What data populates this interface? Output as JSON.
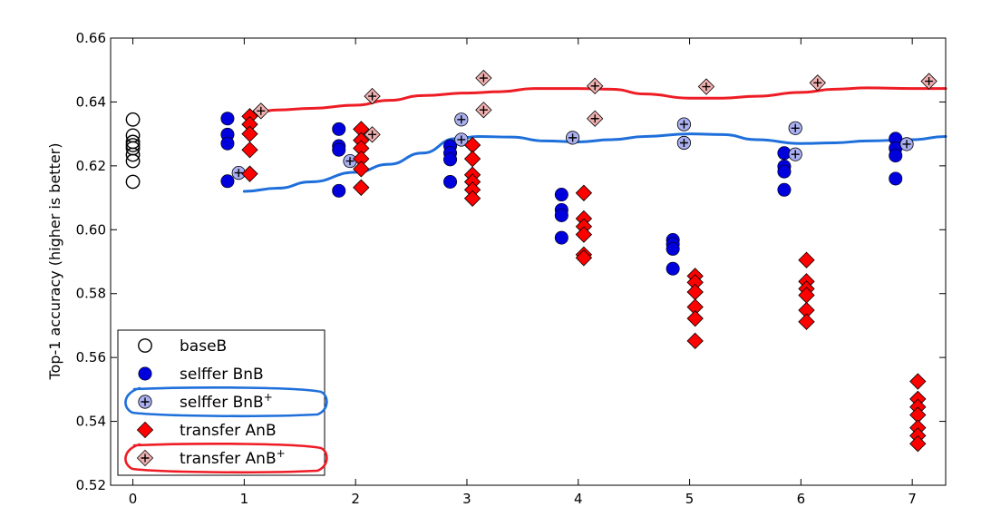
{
  "chart_data": {
    "type": "scatter",
    "ylabel": "Top-1 accuracy (higher is better)",
    "xlim": [
      -0.2,
      7.3
    ],
    "ylim": [
      0.52,
      0.66
    ],
    "x_ticks": [
      "0",
      "1",
      "2",
      "3",
      "4",
      "5",
      "6",
      "7"
    ],
    "y_ticks": [
      "0.52",
      "0.54",
      "0.56",
      "0.58",
      "0.60",
      "0.62",
      "0.64",
      "0.66"
    ],
    "grid": false,
    "legend_position": "lower-left",
    "series": [
      {
        "name": "baseB",
        "marker": "open-circle",
        "color": "#000000",
        "points": [
          [
            0,
            0.6345
          ],
          [
            0,
            0.6295
          ],
          [
            0,
            0.6275
          ],
          [
            0,
            0.6265
          ],
          [
            0,
            0.6255
          ],
          [
            0,
            0.6235
          ],
          [
            0,
            0.6215
          ],
          [
            0,
            0.615
          ]
        ]
      },
      {
        "name": "selffer BnB",
        "marker": "circle",
        "color": "#0000dd",
        "points": [
          [
            0.85,
            0.6348
          ],
          [
            0.85,
            0.6298
          ],
          [
            0.85,
            0.627
          ],
          [
            0.85,
            0.6152
          ],
          [
            1.85,
            0.6315
          ],
          [
            1.85,
            0.6262
          ],
          [
            1.85,
            0.625
          ],
          [
            1.85,
            0.6122
          ],
          [
            2.85,
            0.6262
          ],
          [
            2.85,
            0.624
          ],
          [
            2.85,
            0.622
          ],
          [
            2.85,
            0.615
          ],
          [
            3.85,
            0.611
          ],
          [
            3.85,
            0.6062
          ],
          [
            3.85,
            0.6045
          ],
          [
            3.85,
            0.5975
          ],
          [
            4.85,
            0.5968
          ],
          [
            4.85,
            0.5955
          ],
          [
            4.85,
            0.594
          ],
          [
            4.85,
            0.5878
          ],
          [
            5.85,
            0.624
          ],
          [
            5.85,
            0.6198
          ],
          [
            5.85,
            0.6182
          ],
          [
            5.85,
            0.6125
          ],
          [
            6.85,
            0.6285
          ],
          [
            6.85,
            0.6255
          ],
          [
            6.85,
            0.6232
          ],
          [
            6.85,
            0.616
          ]
        ]
      },
      {
        "name": "selffer BnB",
        "name_sup": "+",
        "marker": "plus-circle",
        "color": "#aab0f0",
        "points": [
          [
            0.95,
            0.6178
          ],
          [
            1.95,
            0.6215
          ],
          [
            2.95,
            0.6345
          ],
          [
            2.95,
            0.6282
          ],
          [
            3.95,
            0.6288
          ],
          [
            4.95,
            0.633
          ],
          [
            4.95,
            0.6272
          ],
          [
            5.95,
            0.6318
          ],
          [
            5.95,
            0.6236
          ],
          [
            6.95,
            0.6268
          ]
        ]
      },
      {
        "name": "transfer AnB",
        "marker": "diamond",
        "color": "#ff0000",
        "points": [
          [
            1.05,
            0.6355
          ],
          [
            1.05,
            0.633
          ],
          [
            1.05,
            0.63
          ],
          [
            1.05,
            0.625
          ],
          [
            1.05,
            0.6175
          ],
          [
            2.05,
            0.6315
          ],
          [
            2.05,
            0.628
          ],
          [
            2.05,
            0.6255
          ],
          [
            2.05,
            0.6222
          ],
          [
            2.05,
            0.619
          ],
          [
            2.05,
            0.6132
          ],
          [
            3.05,
            0.6265
          ],
          [
            3.05,
            0.6222
          ],
          [
            3.05,
            0.6172
          ],
          [
            3.05,
            0.615
          ],
          [
            3.05,
            0.6125
          ],
          [
            3.05,
            0.6098
          ],
          [
            4.05,
            0.6115
          ],
          [
            4.05,
            0.6035
          ],
          [
            4.05,
            0.601
          ],
          [
            4.05,
            0.5985
          ],
          [
            4.05,
            0.5922
          ],
          [
            4.05,
            0.5912
          ],
          [
            5.05,
            0.5855
          ],
          [
            5.05,
            0.5835
          ],
          [
            5.05,
            0.5805
          ],
          [
            5.05,
            0.5758
          ],
          [
            5.05,
            0.5722
          ],
          [
            5.05,
            0.5652
          ],
          [
            6.05,
            0.5905
          ],
          [
            6.05,
            0.5838
          ],
          [
            6.05,
            0.5815
          ],
          [
            6.05,
            0.5795
          ],
          [
            6.05,
            0.5748
          ],
          [
            6.05,
            0.5712
          ],
          [
            7.05,
            0.5525
          ],
          [
            7.05,
            0.547
          ],
          [
            7.05,
            0.5445
          ],
          [
            7.05,
            0.542
          ],
          [
            7.05,
            0.538
          ],
          [
            7.05,
            0.5355
          ],
          [
            7.05,
            0.533
          ]
        ]
      },
      {
        "name": "transfer AnB",
        "name_sup": "+",
        "marker": "plus-diamond",
        "color": "#f0b0b0",
        "points": [
          [
            1.15,
            0.6372
          ],
          [
            2.15,
            0.6418
          ],
          [
            2.15,
            0.6298
          ],
          [
            3.15,
            0.6475
          ],
          [
            3.15,
            0.6375
          ],
          [
            4.15,
            0.645
          ],
          [
            4.15,
            0.6348
          ],
          [
            5.15,
            0.6448
          ],
          [
            6.15,
            0.646
          ],
          [
            7.15,
            0.6465
          ]
        ]
      }
    ],
    "trend_lines": [
      {
        "color": "#ee1c25",
        "x": [
          1,
          1.3,
          1.6,
          2,
          2.3,
          2.6,
          3,
          3.3,
          3.6,
          4,
          4.3,
          4.6,
          5,
          5.3,
          5.6,
          6,
          6.3,
          6.6,
          7,
          7.3
        ],
        "y": [
          0.6355,
          0.6375,
          0.638,
          0.639,
          0.6405,
          0.642,
          0.6428,
          0.6432,
          0.6442,
          0.6442,
          0.644,
          0.6425,
          0.6412,
          0.6412,
          0.6418,
          0.643,
          0.644,
          0.6444,
          0.6442,
          0.6442
        ]
      },
      {
        "color": "#1f6fdb",
        "x": [
          1,
          1.3,
          1.6,
          2,
          2.3,
          2.6,
          2.9,
          3.1,
          3.4,
          3.7,
          4,
          4.3,
          4.6,
          5,
          5.3,
          5.6,
          6,
          6.3,
          6.6,
          7,
          7.3
        ],
        "y": [
          0.612,
          0.613,
          0.615,
          0.618,
          0.6205,
          0.624,
          0.6285,
          0.6292,
          0.629,
          0.6278,
          0.6275,
          0.6282,
          0.6292,
          0.63,
          0.6298,
          0.6282,
          0.627,
          0.6272,
          0.6278,
          0.6282,
          0.6292
        ]
      }
    ],
    "legend_highlights": [
      {
        "entry": 2,
        "color": "#1f6fdb"
      },
      {
        "entry": 4,
        "color": "#ee1c25"
      }
    ]
  }
}
